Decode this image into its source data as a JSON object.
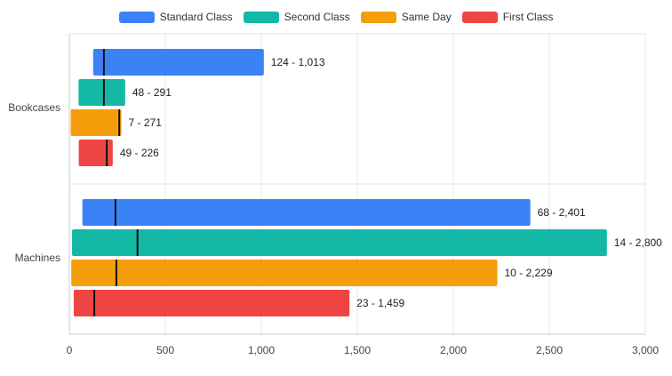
{
  "chart_data": {
    "type": "bar",
    "orientation": "horizontal",
    "subtype": "floating-range-with-marker",
    "categories": [
      "Bookcases",
      "Machines"
    ],
    "series": [
      {
        "name": "Standard Class",
        "color": "#3b82f6",
        "ranges": [
          [
            124,
            1013
          ],
          [
            68,
            2401
          ]
        ],
        "markers": [
          180,
          240
        ],
        "labels": [
          "124 - 1,013",
          "68 - 2,401"
        ]
      },
      {
        "name": "Second Class",
        "color": "#14b8a6",
        "ranges": [
          [
            48,
            291
          ],
          [
            14,
            2800
          ]
        ],
        "markers": [
          180,
          355
        ],
        "labels": [
          "48 - 291",
          "14 - 2,800"
        ]
      },
      {
        "name": "Same Day",
        "color": "#f59e0b",
        "ranges": [
          [
            7,
            271
          ],
          [
            10,
            2229
          ]
        ],
        "markers": [
          260,
          245
        ],
        "labels": [
          "7 - 271",
          "10 - 2,229"
        ]
      },
      {
        "name": "First Class",
        "color": "#ef4444",
        "ranges": [
          [
            49,
            226
          ],
          [
            23,
            1459
          ]
        ],
        "markers": [
          195,
          130
        ],
        "labels": [
          "49 - 226",
          "23 - 1,459"
        ]
      }
    ],
    "xlim": [
      0,
      3000
    ],
    "xticks": [
      0,
      500,
      1000,
      1500,
      2000,
      2500,
      3000
    ],
    "xtick_labels": [
      "0",
      "500",
      "1,000",
      "1,500",
      "2,000",
      "2,500",
      "3,000"
    ],
    "grid": true,
    "legend_position": "top-center",
    "title": "",
    "xlabel": "",
    "ylabel": ""
  }
}
